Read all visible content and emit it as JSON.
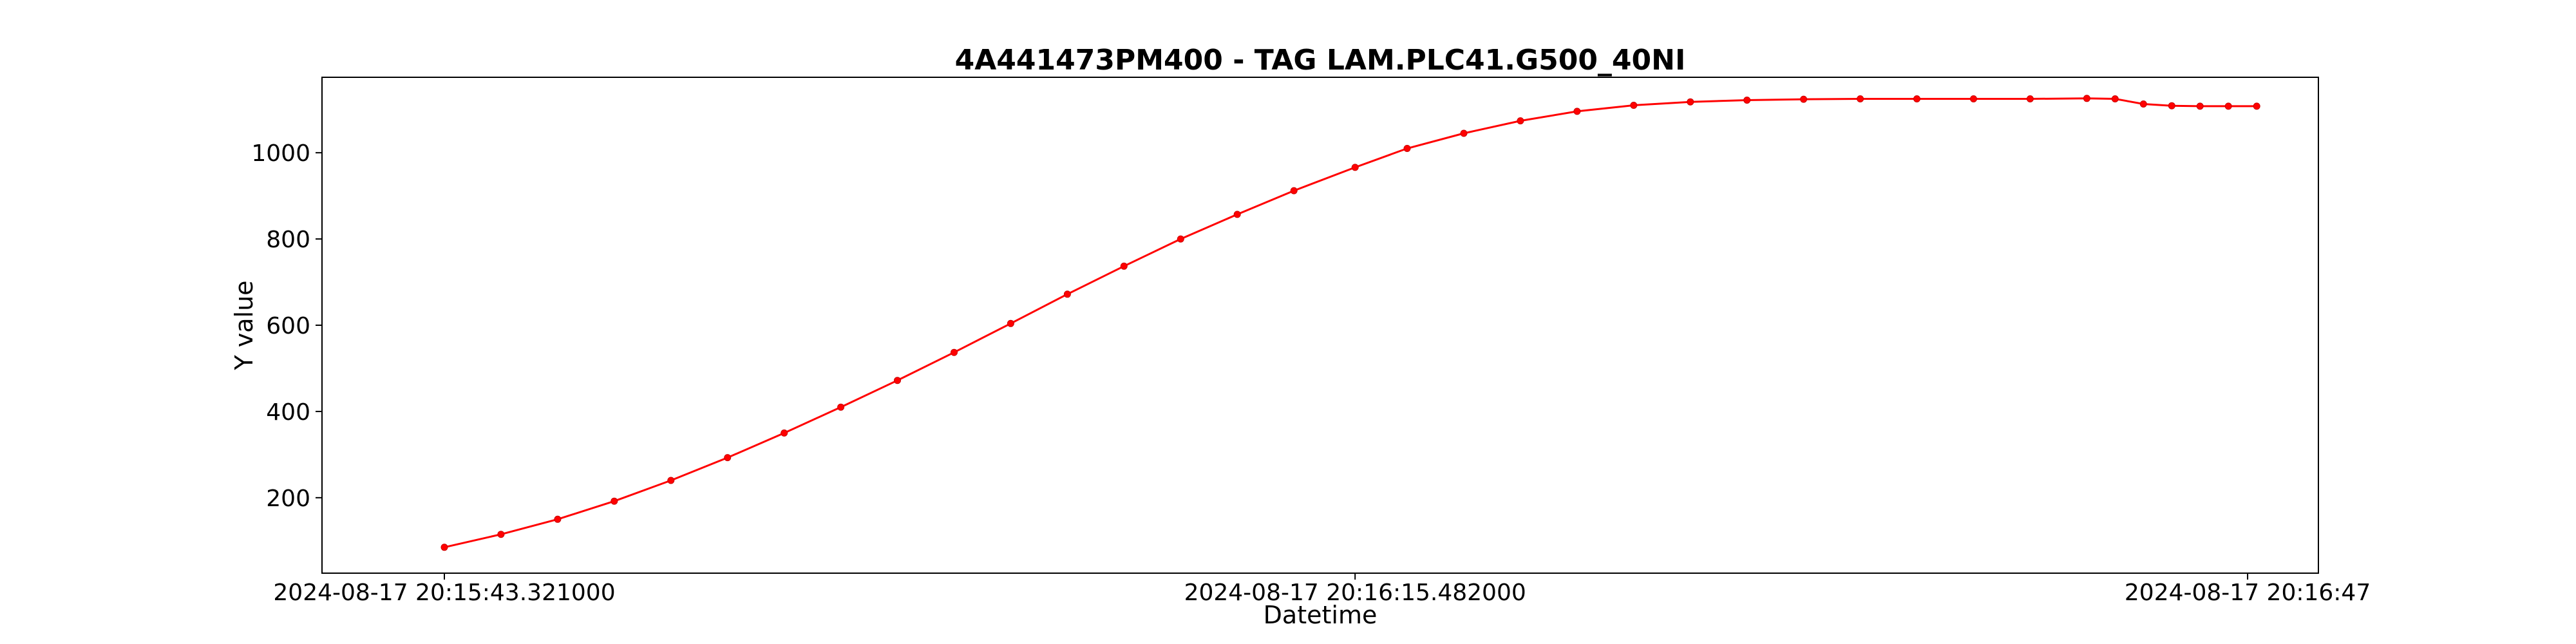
{
  "chart_data": {
    "type": "scatter",
    "title": "4A441473PM400 - TAG LAM.PLC41.G500_40NI",
    "xlabel": "Datetime",
    "ylabel": "Y value",
    "x_range": [
      "2024-08-17 20:15:39.000000",
      "2024-08-17 20:16:49.500000"
    ],
    "ylim": [
      25,
      1175
    ],
    "x_ticks": [
      {
        "value": "2024-08-17 20:15:43.321000",
        "label": "2024-08-17 20:15:43.321000"
      },
      {
        "value": "2024-08-17 20:16:15.482000",
        "label": "2024-08-17 20:16:15.482000"
      },
      {
        "value": "2024-08-17 20:16:47",
        "label": "2024-08-17 20:16:47"
      }
    ],
    "y_ticks": [
      200,
      400,
      600,
      800,
      1000
    ],
    "grid": false,
    "legend": "none",
    "marker_color": "#ff0000",
    "marker_edge_color": "#cc0000",
    "series": [
      {
        "x": [
          "2024-08-17 20:15:43.321000",
          "2024-08-17 20:15:45.321000",
          "2024-08-17 20:15:47.321000",
          "2024-08-17 20:15:49.321000",
          "2024-08-17 20:15:51.321000",
          "2024-08-17 20:15:53.321000",
          "2024-08-17 20:15:55.321000",
          "2024-08-17 20:15:57.321000",
          "2024-08-17 20:15:59.321000",
          "2024-08-17 20:16:01.321000",
          "2024-08-17 20:16:03.321000",
          "2024-08-17 20:16:05.321000",
          "2024-08-17 20:16:07.321000",
          "2024-08-17 20:16:09.321000",
          "2024-08-17 20:16:11.321000",
          "2024-08-17 20:16:13.321000",
          "2024-08-17 20:16:15.482000",
          "2024-08-17 20:16:17.321000",
          "2024-08-17 20:16:19.321000",
          "2024-08-17 20:16:21.321000",
          "2024-08-17 20:16:23.321000",
          "2024-08-17 20:16:25.321000",
          "2024-08-17 20:16:27.321000",
          "2024-08-17 20:16:29.321000",
          "2024-08-17 20:16:31.321000",
          "2024-08-17 20:16:33.321000",
          "2024-08-17 20:16:35.321000",
          "2024-08-17 20:16:37.321000",
          "2024-08-17 20:16:39.321000",
          "2024-08-17 20:16:41.321000",
          "2024-08-17 20:16:42.321000",
          "2024-08-17 20:16:43.321000",
          "2024-08-17 20:16:44.321000",
          "2024-08-17 20:16:45.321000",
          "2024-08-17 20:16:46.321000",
          "2024-08-17 20:16:47.321000"
        ],
        "y": [
          85,
          115,
          150,
          192,
          240,
          293,
          350,
          410,
          472,
          537,
          604,
          672,
          737,
          800,
          857,
          912,
          966,
          1010,
          1045,
          1074,
          1096,
          1110,
          1118,
          1122,
          1124,
          1125,
          1125,
          1125,
          1125,
          1126,
          1125,
          1113,
          1109,
          1108,
          1108,
          1108
        ]
      }
    ]
  }
}
